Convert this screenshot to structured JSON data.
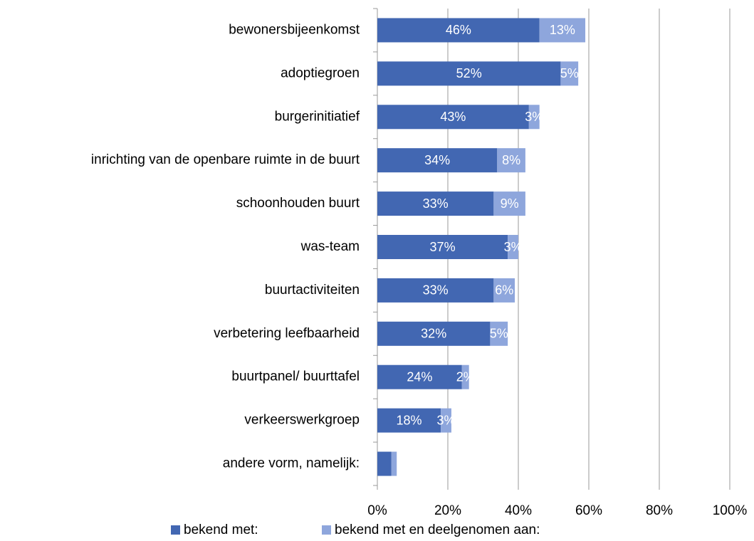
{
  "chart_data": {
    "type": "stacked-bar-horizontal",
    "categories": [
      "bewonersbijeenkomst",
      "adoptiegroen",
      "burgerinitiatief",
      "inrichting van de openbare ruimte in de buurt",
      "schoonhouden buurt",
      "was-team",
      "buurtactiviteiten",
      "verbetering leefbaarheid",
      "buurtpanel/ buurttafel",
      "verkeerswerkgroep",
      "andere vorm, namelijk:"
    ],
    "series": [
      {
        "name": "bekend met:",
        "color": "#4267b2",
        "values": [
          46,
          52,
          43,
          34,
          33,
          37,
          33,
          32,
          24,
          18,
          4
        ],
        "value_labels": [
          "46%",
          "52%",
          "43%",
          "34%",
          "33%",
          "37%",
          "33%",
          "32%",
          "24%",
          "18%",
          null
        ]
      },
      {
        "name": "bekend met en deelgenomen aan:",
        "color": "#8ea6dc",
        "values": [
          13,
          5,
          3,
          8,
          9,
          3,
          6,
          5,
          2,
          3,
          1.5
        ],
        "value_labels": [
          "13%",
          "5%",
          "3%",
          "8%",
          "9%",
          "3%",
          "6%",
          "5%",
          "2%",
          "3%",
          null
        ]
      }
    ],
    "xlim": [
      0,
      100
    ],
    "xticks": [
      {
        "value": 0,
        "label": "0%"
      },
      {
        "value": 20,
        "label": "20%"
      },
      {
        "value": 40,
        "label": "40%"
      },
      {
        "value": 60,
        "label": "60%"
      },
      {
        "value": 80,
        "label": "80%"
      },
      {
        "value": 100,
        "label": "100%"
      }
    ],
    "grid": true,
    "legend": "bottom"
  }
}
